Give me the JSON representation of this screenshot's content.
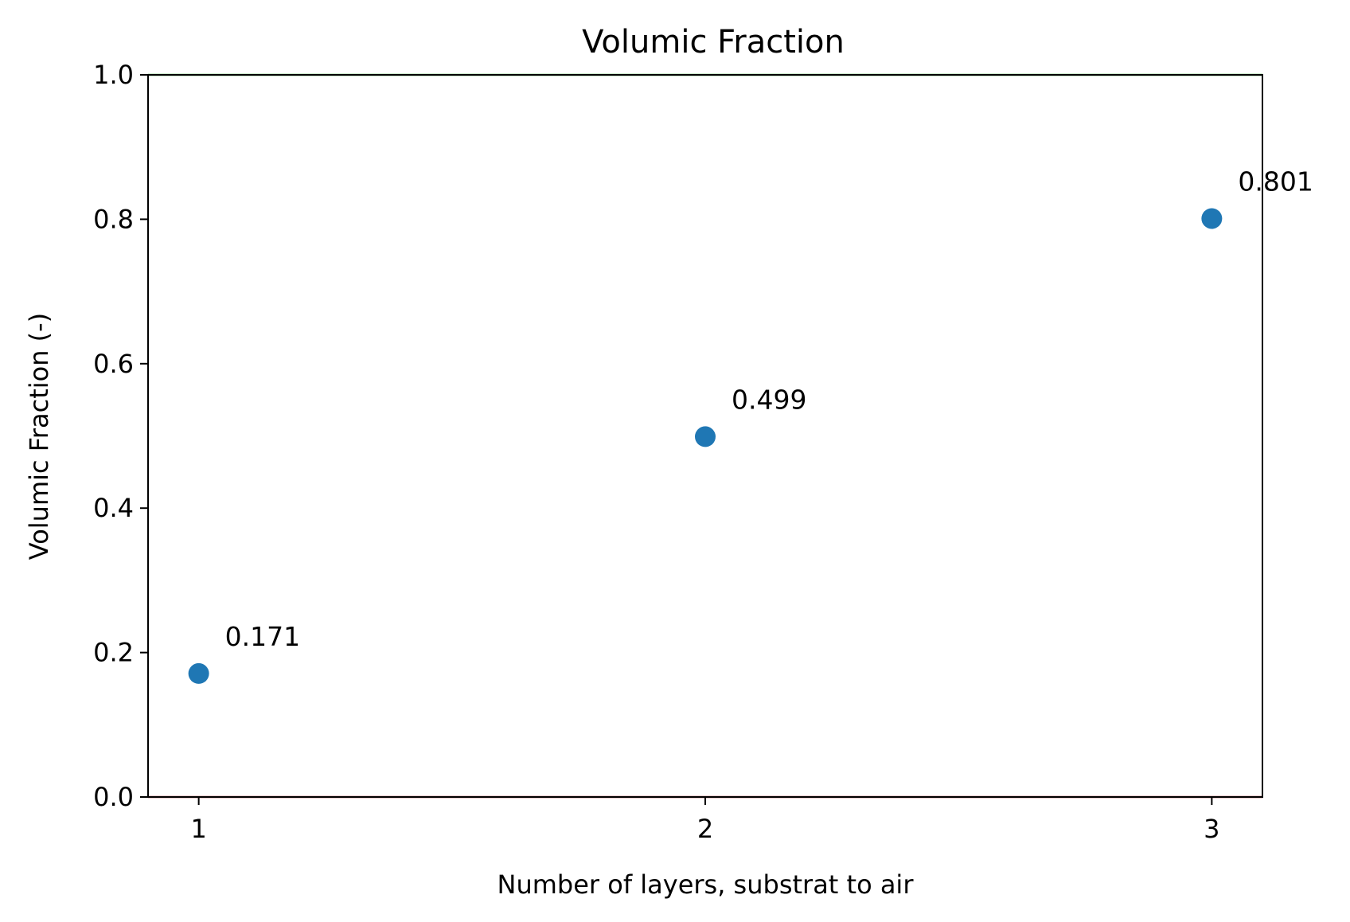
{
  "chart_data": {
    "type": "scatter",
    "title": "Volumic Fraction",
    "xlabel": "Number of layers, substrat to air",
    "ylabel": "Volumic Fraction (-)",
    "x": [
      1,
      2,
      3
    ],
    "y": [
      0.171,
      0.499,
      0.801
    ],
    "data_labels": [
      "0.171",
      "0.499",
      "0.801"
    ],
    "xticks": [
      "1",
      "2",
      "3"
    ],
    "yticks": [
      "0.0",
      "0.2",
      "0.4",
      "0.6",
      "0.8",
      "1.0"
    ],
    "xlim": [
      0.9,
      3.1
    ],
    "ylim": [
      0,
      1
    ],
    "grid": false,
    "point_color": "#1f77b4",
    "reference_lines": [
      {
        "y": 0,
        "color": "#d62728"
      },
      {
        "y": 1,
        "color": "#2ca02c"
      }
    ]
  }
}
